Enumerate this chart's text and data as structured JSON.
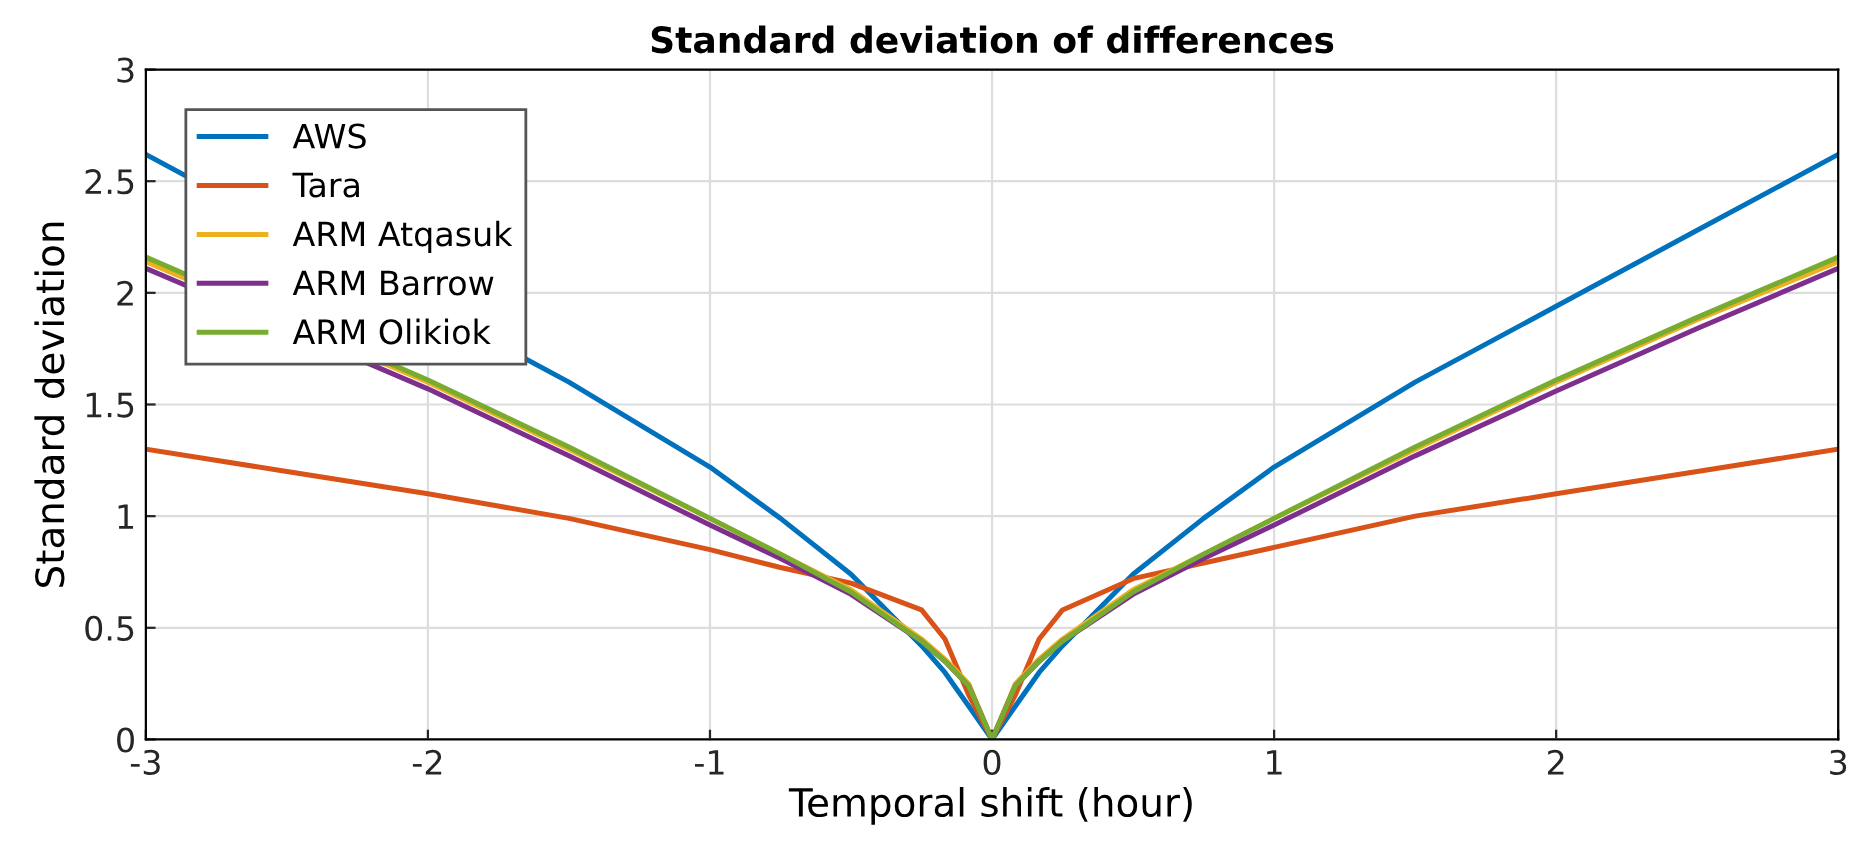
{
  "chart_data": {
    "type": "line",
    "title": "Standard deviation of differences",
    "xlabel": "Temporal shift (hour)",
    "ylabel": "Standard deviation",
    "x": [
      -3,
      -2.5,
      -2,
      -1.5,
      -1,
      -0.75,
      -0.5,
      -0.25,
      -0.167,
      -0.083,
      0,
      0.083,
      0.167,
      0.25,
      0.5,
      0.75,
      1,
      1.5,
      2,
      2.5,
      3
    ],
    "series": [
      {
        "name": "AWS",
        "color": "#0072bd",
        "x": [
          -3,
          -1.5,
          -1,
          -0.75,
          -0.5,
          -0.25,
          -0.167,
          -0.083,
          0,
          0.083,
          0.167,
          0.25,
          0.5,
          0.75,
          1,
          1.5,
          2,
          2.5,
          3
        ],
        "values": [
          2.62,
          1.6,
          1.22,
          0.99,
          0.74,
          0.42,
          0.3,
          0.15,
          0,
          0.15,
          0.3,
          0.42,
          0.74,
          0.99,
          1.22,
          1.6,
          1.94,
          2.28,
          2.62
        ]
      },
      {
        "name": "Tara",
        "color": "#d95319",
        "values": [
          1.3,
          1.2,
          1.1,
          0.99,
          0.85,
          0.77,
          0.7,
          0.58,
          0.45,
          0.2,
          0,
          0.2,
          0.45,
          0.58,
          0.72,
          0.79,
          0.86,
          1.0,
          1.1,
          1.2,
          1.3
        ]
      },
      {
        "name": "ARM Atqasuk",
        "color": "#edb120",
        "x": [
          -3,
          -2,
          -1.5,
          -1,
          -0.75,
          -0.5,
          -0.25,
          -0.167,
          -0.083,
          0,
          0.083,
          0.167,
          0.25,
          0.5,
          0.75,
          1,
          1.5,
          2,
          2.5,
          3
        ],
        "values": [
          2.14,
          1.6,
          1.3,
          0.99,
          0.83,
          0.67,
          0.45,
          0.36,
          0.25,
          0,
          0.25,
          0.36,
          0.45,
          0.67,
          0.83,
          0.99,
          1.3,
          1.6,
          1.88,
          2.14
        ]
      },
      {
        "name": "ARM Barrow",
        "color": "#7e2f8e",
        "x": [
          -3,
          -2,
          -1.5,
          -1,
          -0.75,
          -0.5,
          -0.25,
          -0.167,
          -0.083,
          0,
          0.083,
          0.167,
          0.25,
          0.5,
          0.75,
          1,
          1.5,
          2,
          2.5,
          3
        ],
        "values": [
          2.11,
          1.57,
          1.27,
          0.96,
          0.81,
          0.65,
          0.44,
          0.35,
          0.24,
          0,
          0.24,
          0.35,
          0.44,
          0.65,
          0.81,
          0.96,
          1.27,
          1.56,
          1.84,
          2.11
        ]
      },
      {
        "name": "ARM Olikiok",
        "color": "#77ac30",
        "x": [
          -3,
          -2,
          -1.5,
          -1,
          -0.75,
          -0.5,
          -0.25,
          -0.167,
          -0.083,
          0,
          0.083,
          0.167,
          0.25,
          0.5,
          0.75,
          1,
          1.5,
          2,
          2.5,
          3
        ],
        "values": [
          2.16,
          1.61,
          1.31,
          0.99,
          0.83,
          0.66,
          0.44,
          0.35,
          0.24,
          0,
          0.24,
          0.35,
          0.44,
          0.66,
          0.83,
          0.99,
          1.31,
          1.61,
          1.89,
          2.16
        ]
      }
    ],
    "xlim": [
      -3,
      3
    ],
    "ylim": [
      0,
      3
    ],
    "xticks": [
      -3,
      -2,
      -1,
      0,
      1,
      2,
      3
    ],
    "yticks": [
      0,
      0.5,
      1,
      1.5,
      2,
      2.5,
      3
    ],
    "grid": true,
    "legend": "top left",
    "marker": "none",
    "line_style": "solid"
  }
}
